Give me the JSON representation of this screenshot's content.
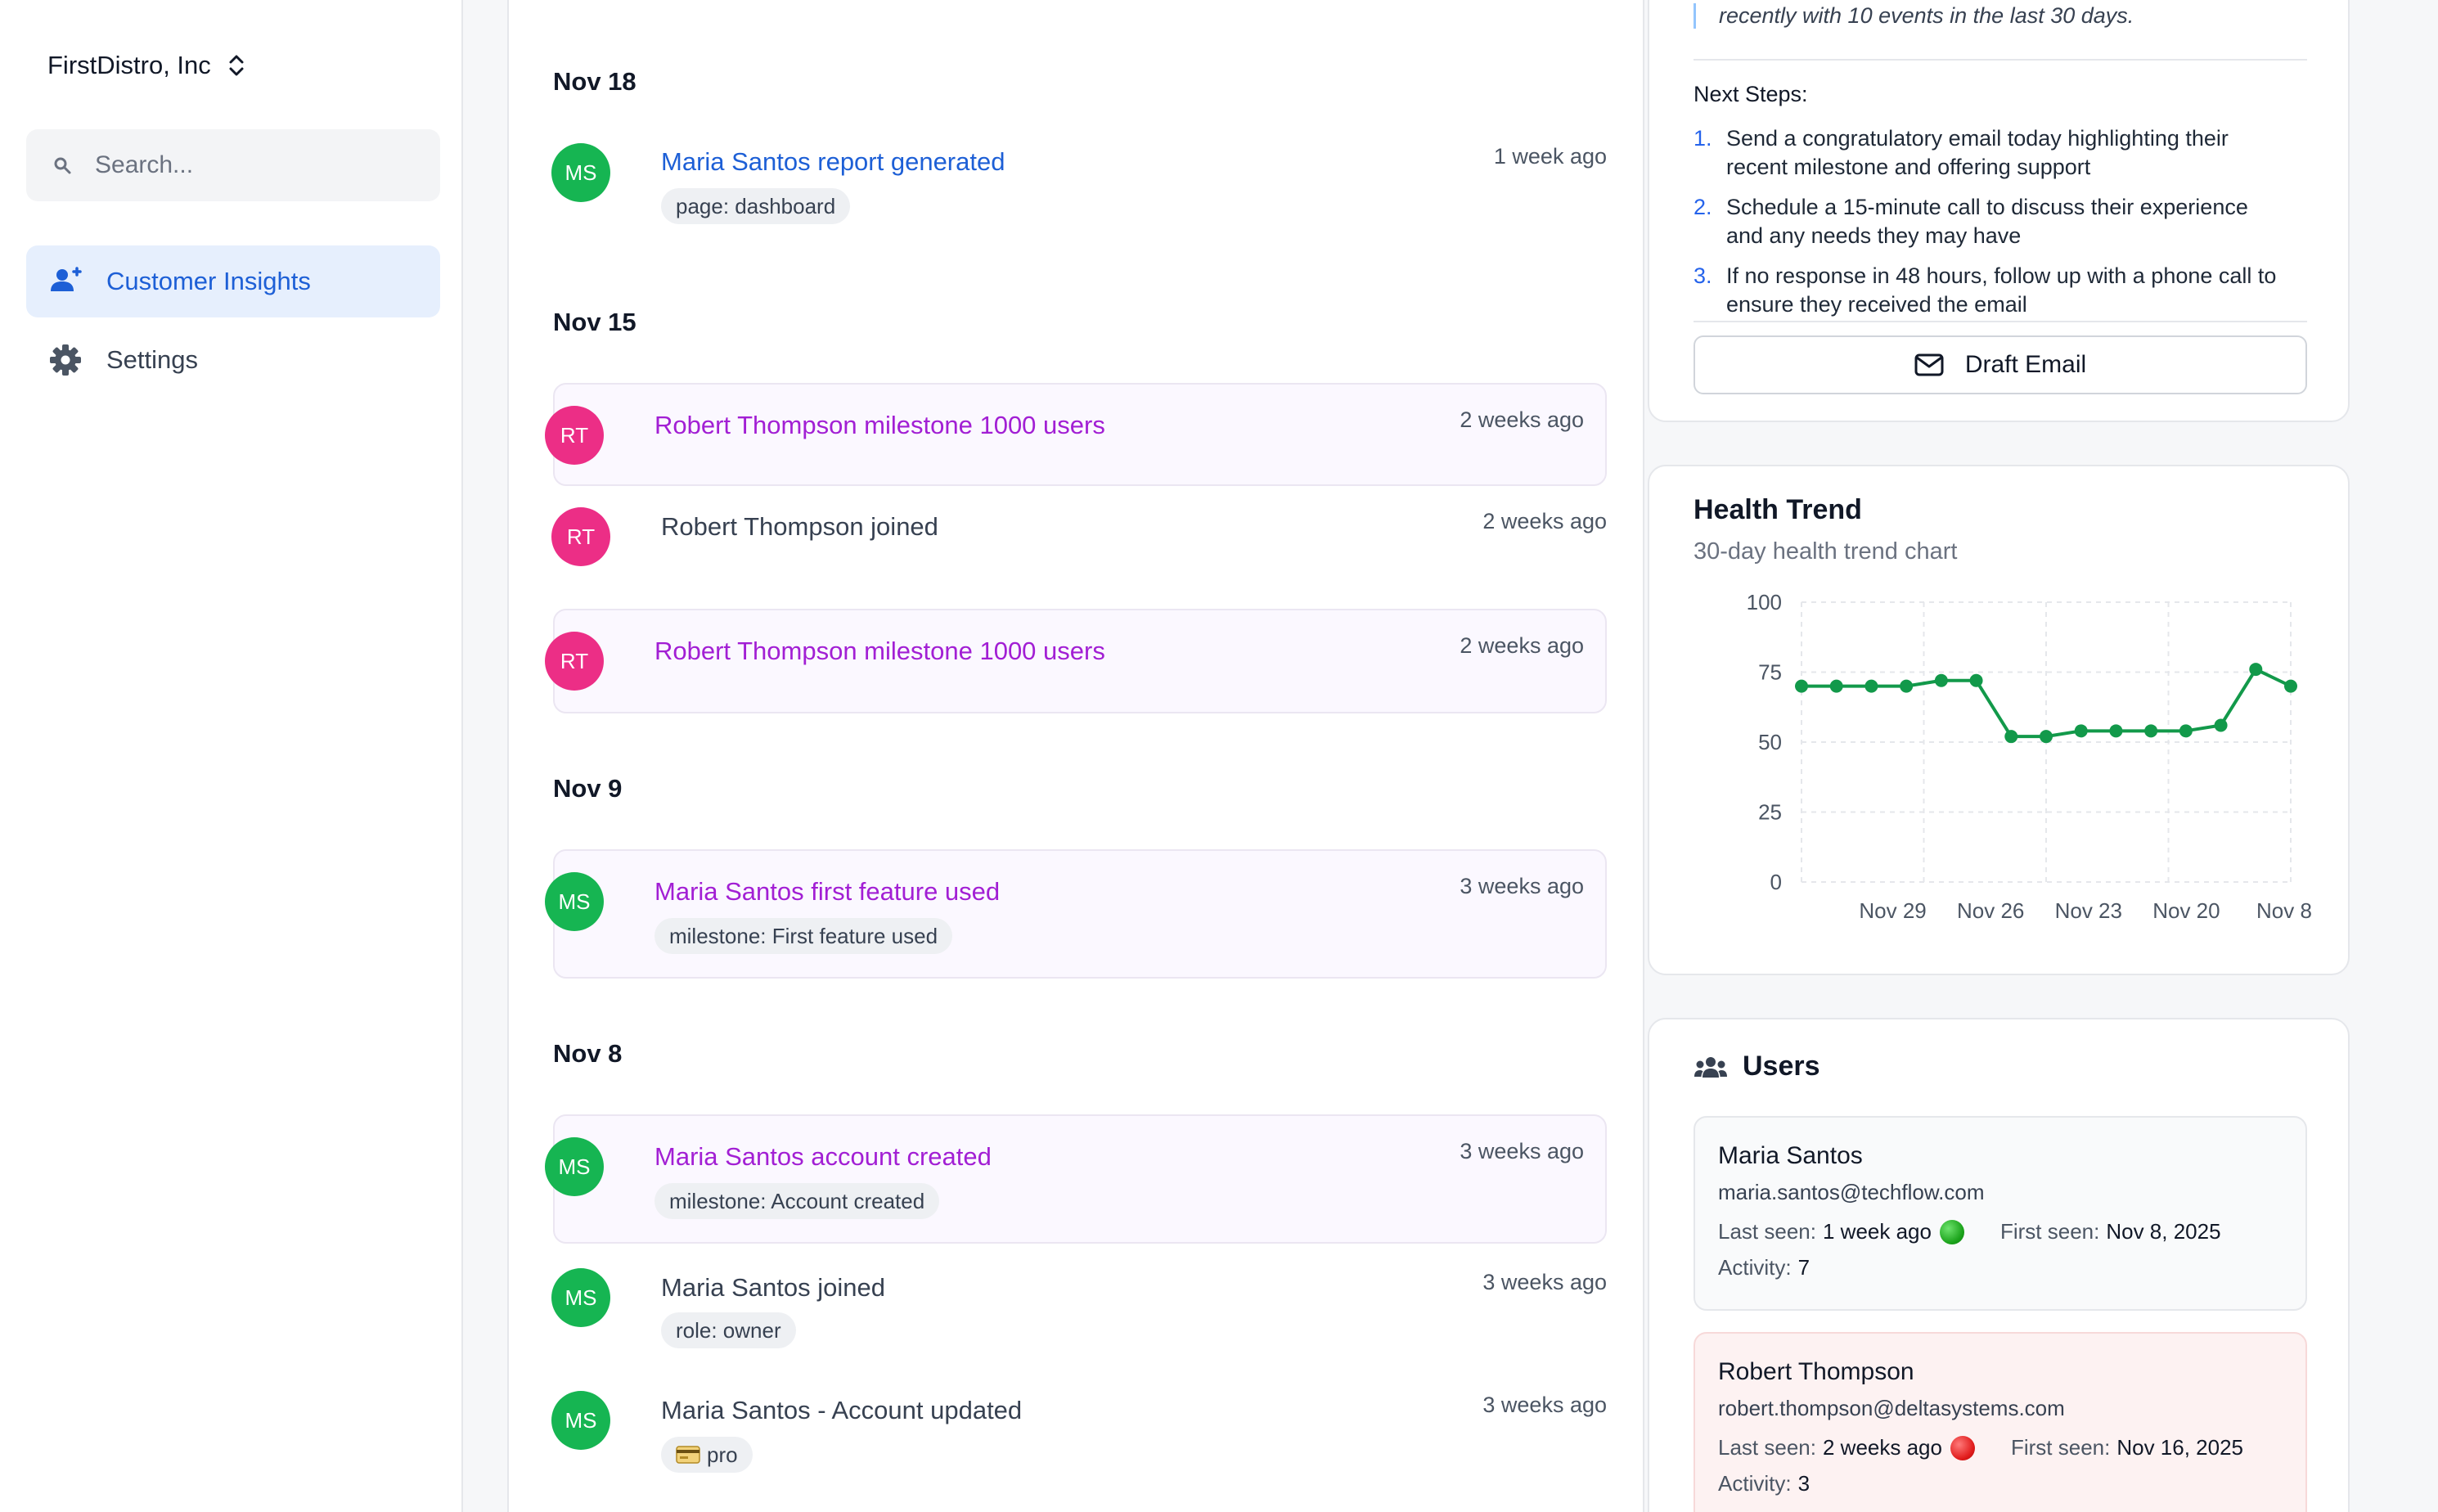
{
  "sidebar": {
    "org_name": "FirstDistro, Inc",
    "search_placeholder": "Search...",
    "nav": [
      {
        "label": "Customer Insights",
        "icon": "users-icon",
        "active": true
      },
      {
        "label": "Settings",
        "icon": "gear-icon",
        "active": false
      }
    ]
  },
  "timeline": [
    {
      "date": "Nov 18",
      "events": [
        {
          "initials": "MS",
          "title": "Maria Santos report generated",
          "time": "1 week ago",
          "tags": [
            "page: dashboard"
          ]
        }
      ]
    },
    {
      "date": "Nov 15",
      "events": [
        {
          "initials": "RT",
          "title": "Robert Thompson milestone 1000 users",
          "time": "2 weeks ago",
          "tags": []
        },
        {
          "initials": "RT",
          "title": "Robert Thompson joined",
          "time": "2 weeks ago",
          "tags": []
        },
        {
          "initials": "RT",
          "title": "Robert Thompson milestone 1000 users",
          "time": "2 weeks ago",
          "tags": []
        }
      ]
    },
    {
      "date": "Nov 9",
      "events": [
        {
          "initials": "MS",
          "title": "Maria Santos first feature used",
          "time": "3 weeks ago",
          "tags": [
            "milestone: First feature used"
          ]
        }
      ]
    },
    {
      "date": "Nov 8",
      "events": [
        {
          "initials": "MS",
          "title": "Maria Santos account created",
          "time": "3 weeks ago",
          "tags": [
            "milestone: Account created"
          ]
        },
        {
          "initials": "MS",
          "title": "Maria Santos joined",
          "time": "3 weeks ago",
          "tags": [
            "role: owner"
          ]
        },
        {
          "initials": "MS",
          "title": "Maria Santos - Account updated",
          "time": "3 weeks ago",
          "tags": [
            "pro"
          ]
        }
      ]
    }
  ],
  "recommendation": {
    "quote_tail": "recently with 10 events in the last 30 days.",
    "next_steps_label": "Next Steps:",
    "steps": [
      {
        "num": "1.",
        "line1": "Send a congratulatory email today highlighting their",
        "line2": "recent milestone and offering support"
      },
      {
        "num": "2.",
        "line1": "Schedule a 15-minute call to discuss their experience",
        "line2": "and any needs they may have"
      },
      {
        "num": "3.",
        "line1": "If no response in 48 hours, follow up with a phone call to",
        "line2": "ensure they received the email"
      }
    ],
    "draft_button": "Draft Email"
  },
  "health": {
    "title": "Health Trend",
    "subtitle": "30-day health trend chart"
  },
  "chart_data": {
    "type": "line",
    "ylim": [
      0,
      100
    ],
    "yticks": [
      "0",
      "25",
      "50",
      "75",
      "100"
    ],
    "xtick_labels": [
      "Nov 29",
      "Nov 26",
      "Nov 23",
      "Nov 20",
      "Nov 8"
    ],
    "grid": true,
    "series": [
      {
        "color": "#12994a",
        "values": [
          70,
          70,
          70,
          70,
          72,
          72,
          52,
          52,
          54,
          54,
          54,
          54,
          56,
          76,
          70
        ]
      }
    ]
  },
  "users": {
    "title": "Users",
    "list": [
      {
        "name": "Maria Santos",
        "email": "maria.santos@techflow.com",
        "last_seen_label": "Last seen:",
        "last_seen": "1 week ago",
        "status": "green",
        "first_seen_label": "First seen:",
        "first_seen": "Nov 8, 2025",
        "activity_label": "Activity:",
        "activity": "7"
      },
      {
        "name": "Robert Thompson",
        "email": "robert.thompson@deltasystems.com",
        "last_seen_label": "Last seen:",
        "last_seen": "2 weeks ago",
        "status": "red",
        "first_seen_label": "First seen:",
        "first_seen": "Nov 16, 2025",
        "activity_label": "Activity:",
        "activity": "3"
      }
    ]
  },
  "colors": {
    "accent_blue": "#1d5fd6",
    "milestone_purple": "#a21fd4",
    "avatar_ms": "#16b552",
    "avatar_rt": "#ec2e86",
    "chart_line": "#12994a"
  }
}
